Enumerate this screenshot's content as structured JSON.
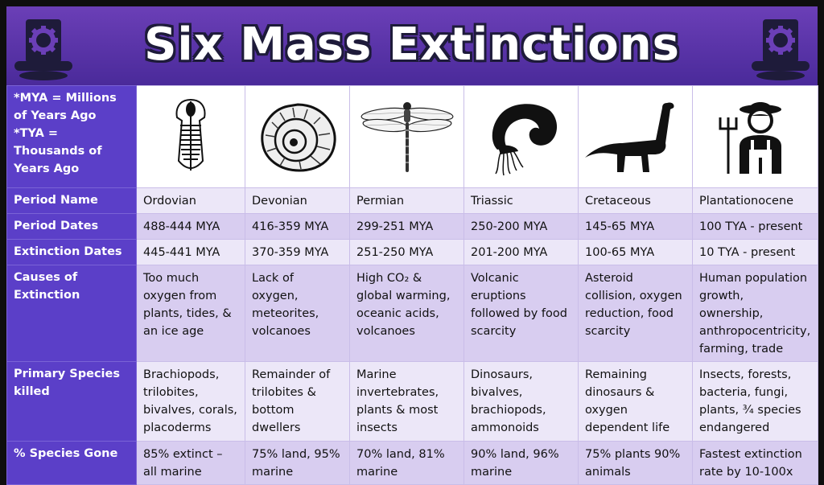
{
  "title": "Six Mass Extinctions",
  "note": "*MYA = Millions of Years Ago *TYA = Thousands of Years Ago",
  "row_labels": {
    "period_name": "Period Name",
    "period_dates": "Period Dates",
    "extinction_dates": "Extinction Dates",
    "causes": "Causes of Extinction",
    "species": "Primary Species killed",
    "pct": "% Species Gone"
  },
  "icons": [
    "trilobite-icon",
    "ammonite-icon",
    "dragonfly-icon",
    "ammonoid-silhouette-icon",
    "sauropod-dinosaur-icon",
    "farmer-with-pitchfork-icon"
  ],
  "periods": [
    {
      "name": "Ordovian",
      "dates": "488-444 MYA",
      "extinction": "445-441 MYA",
      "causes": "Too much oxygen from plants, tides, & an ice age",
      "species": "Brachiopods, trilobites, bivalves, corals, placoderms",
      "pct": "85% extinct – all marine"
    },
    {
      "name": "Devonian",
      "dates": "416-359 MYA",
      "extinction": "370-359 MYA",
      "causes": "Lack of oxygen, meteorites, volcanoes",
      "species": "Remainder of trilobites & bottom dwellers",
      "pct": "75% land, 95% marine"
    },
    {
      "name": "Permian",
      "dates": "299-251 MYA",
      "extinction": "251-250 MYA",
      "causes": "High CO₂ & global warming, oceanic acids, volcanoes",
      "species": "Marine invertebrates, plants & most insects",
      "pct": "70% land, 81% marine"
    },
    {
      "name": "Triassic",
      "dates": "250-200 MYA",
      "extinction": "201-200 MYA",
      "causes": "Volcanic eruptions followed by food scarcity",
      "species": "Dinosaurs, bivalves, brachiopods, ammonoids",
      "pct": "90% land, 96% marine"
    },
    {
      "name": "Cretaceous",
      "dates": "145-65 MYA",
      "extinction": "100-65 MYA",
      "causes": "Asteroid collision, oxygen reduction, food scarcity",
      "species": "Remaining dinosaurs & oxygen dependent life",
      "pct": "75% plants 90% animals"
    },
    {
      "name": "Plantationocene",
      "dates": "100 TYA - present",
      "extinction": "10 TYA - present",
      "causes": "Human population growth, ownership, anthropocentricity, farming, trade",
      "species": "Insects, forests, bacteria, fungi, plants, ¾ species endangered",
      "pct": "Fastest extinction rate by 10-100x"
    }
  ],
  "colors": {
    "header": "#5a34a8",
    "label": "#5b3fc8",
    "row_light": "#ece7f8",
    "row_dark": "#d8cdf0"
  }
}
